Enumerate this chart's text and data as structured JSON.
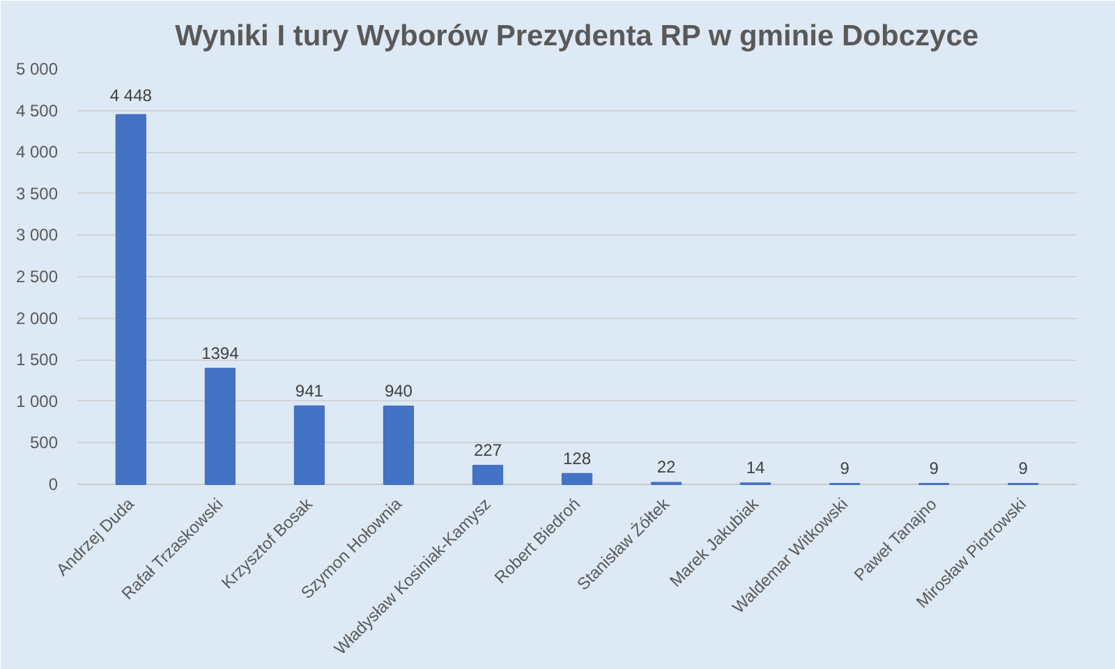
{
  "chart_data": {
    "type": "bar",
    "title": "Wyniki I tury Wyborów Prezydenta RP w gminie Dobczyce",
    "categories": [
      "Andrzej Duda",
      "Rafał Trzaskowski",
      "Krzysztof Bosak",
      "Szymon Hołownia",
      "Władysław Kosiniak-Kamysz",
      "Robert Biedroń",
      "Stanisław Żółtek",
      "Marek Jakubiak",
      "Waldemar Witkowski",
      "Paweł Tanajno",
      "Mirosław Piotrowski"
    ],
    "values": [
      4448,
      1394,
      941,
      940,
      227,
      128,
      22,
      14,
      9,
      9,
      9
    ],
    "value_labels": [
      "4 448",
      "1394",
      "941",
      "940",
      "227",
      "128",
      "22",
      "14",
      "9",
      "9",
      "9"
    ],
    "color": "#4472c4",
    "ylim": [
      0,
      5000
    ],
    "yticks": [
      0,
      {
        "value": 500,
        "label": "500"
      },
      {
        "value": 1000,
        "label": "1 000"
      },
      {
        "value": 1500,
        "label": "1 500"
      },
      {
        "value": 2000,
        "label": "2 000"
      },
      {
        "value": 2500,
        "label": "2 500"
      },
      {
        "value": 3000,
        "label": "3 000"
      },
      {
        "value": 3500,
        "label": "3 500"
      },
      {
        "value": 4000,
        "label": "4 000"
      },
      {
        "value": 4500,
        "label": "4 500"
      },
      {
        "value": 5000,
        "label": "5 000"
      }
    ],
    "grid": "y"
  }
}
